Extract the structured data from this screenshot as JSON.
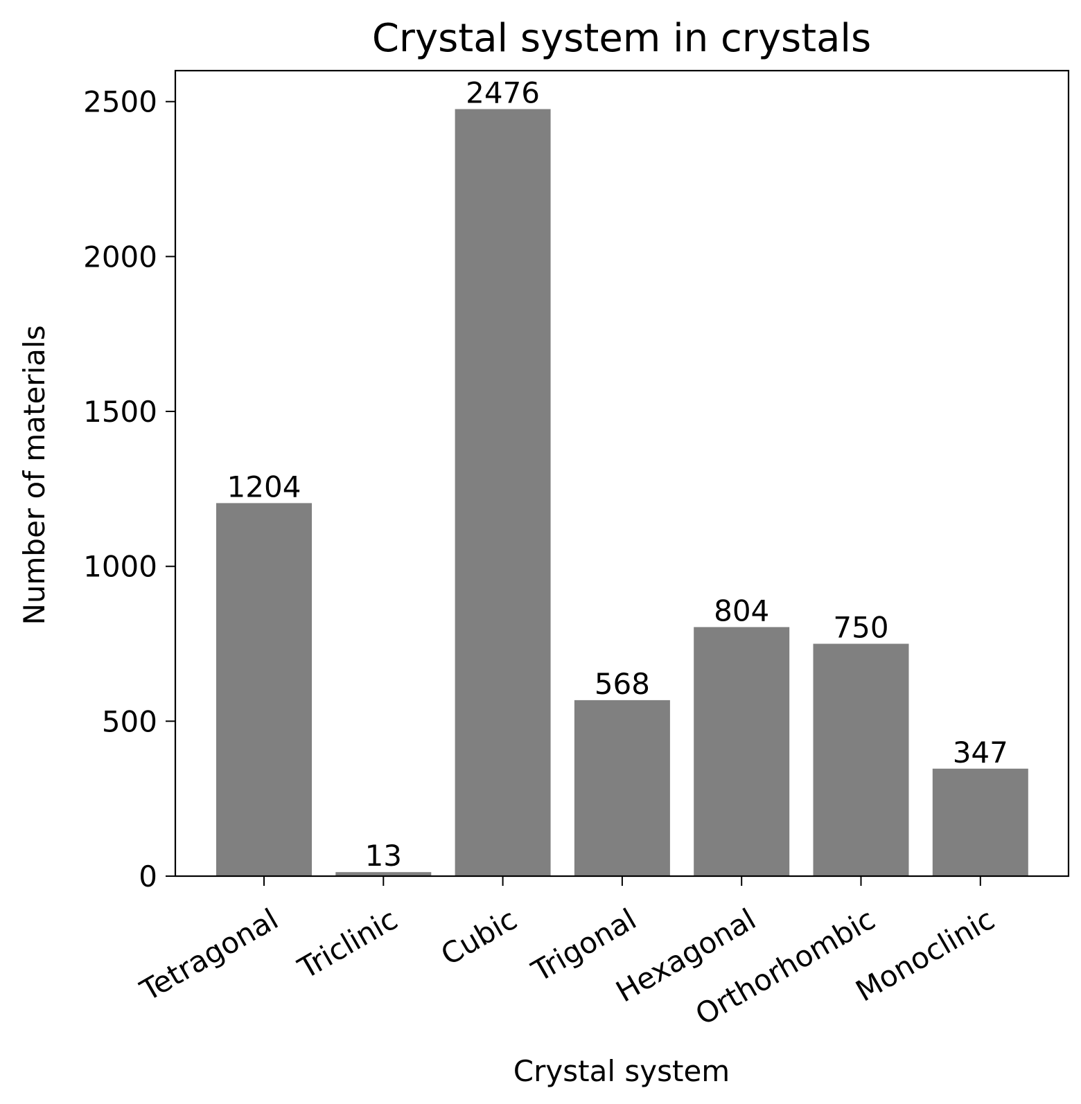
{
  "chart_data": {
    "type": "bar",
    "title": "Crystal system in crystals",
    "xlabel": "Crystal system",
    "ylabel": "Number of materials",
    "categories": [
      "Tetragonal",
      "Triclinic",
      "Cubic",
      "Trigonal",
      "Hexagonal",
      "Orthorhombic",
      "Monoclinic"
    ],
    "values": [
      1204,
      13,
      2476,
      568,
      804,
      750,
      347
    ],
    "data_labels": [
      "1204",
      "13",
      "2476",
      "568",
      "804",
      "750",
      "347"
    ],
    "ylim": [
      0,
      2600
    ],
    "yticks": [
      0,
      500,
      1000,
      1500,
      2000,
      2500
    ],
    "ytick_labels": [
      "0",
      "500",
      "1000",
      "1500",
      "2000",
      "2500"
    ],
    "bar_color": "#808080",
    "grid": false,
    "legend": "none"
  }
}
